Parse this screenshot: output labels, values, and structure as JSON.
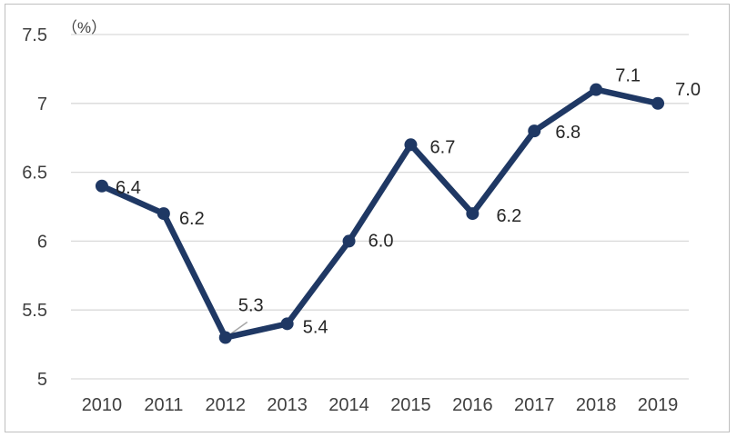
{
  "chart_data": {
    "type": "line",
    "x": [
      "2010",
      "2011",
      "2012",
      "2013",
      "2014",
      "2015",
      "2016",
      "2017",
      "2018",
      "2019"
    ],
    "series": [
      {
        "values": [
          6.4,
          6.2,
          5.3,
          5.4,
          6.0,
          6.7,
          6.2,
          6.8,
          7.1,
          7.0
        ],
        "data_labels": [
          "6.4",
          "6.2",
          "5.3",
          "5.4",
          "6.0",
          "6.7",
          "6.2",
          "6.8",
          "7.1",
          "7.0"
        ],
        "color": "#1f3864"
      }
    ],
    "y_unit": "（%）",
    "ylim": [
      5,
      7.5
    ],
    "y_ticks": [
      "5",
      "5.5",
      "6",
      "6.5",
      "7",
      "7.5"
    ],
    "grid": true,
    "gridline_color": "#d9d9d9",
    "leader_line_color": "#a6a6a6"
  }
}
